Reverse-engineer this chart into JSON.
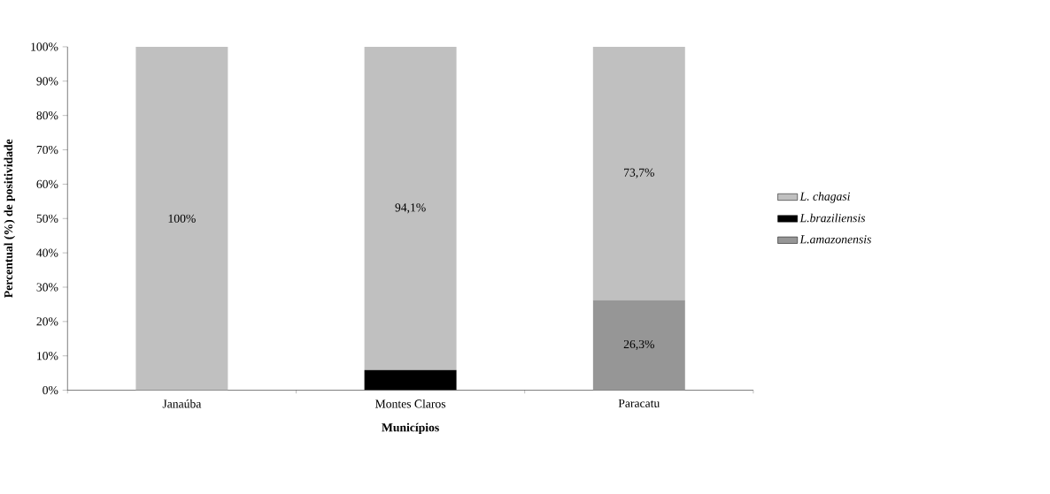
{
  "chart_data": {
    "type": "bar",
    "stacked": true,
    "xlabel": "Municípios",
    "ylabel": "Percentual (%) de positividade",
    "categories": [
      "Janaúba",
      "Montes Claros",
      "Paracatu"
    ],
    "series": [
      {
        "name": "L.amazonensis",
        "color": "#969696",
        "values": [
          0,
          0,
          26.3
        ],
        "value_labels": [
          null,
          null,
          "26,3%"
        ]
      },
      {
        "name": "L.braziliensis",
        "color": "#000000",
        "values": [
          0,
          5.9,
          0
        ],
        "value_labels": [
          null,
          null,
          null
        ]
      },
      {
        "name": "L. chagasi",
        "color": "#c0c0c0",
        "values": [
          100,
          94.1,
          73.7
        ],
        "value_labels": [
          "100%",
          "94,1%",
          "73,7%"
        ]
      }
    ],
    "ylim": [
      0,
      100
    ],
    "yticks": [
      {
        "value": 0,
        "label": "0%"
      },
      {
        "value": 10,
        "label": "10%"
      },
      {
        "value": 20,
        "label": "20%"
      },
      {
        "value": 30,
        "label": "30%"
      },
      {
        "value": 40,
        "label": "40%"
      },
      {
        "value": 50,
        "label": "50%"
      },
      {
        "value": 60,
        "label": "60%"
      },
      {
        "value": 70,
        "label": "70%"
      },
      {
        "value": 80,
        "label": "80%"
      },
      {
        "value": 90,
        "label": "90%"
      },
      {
        "value": 100,
        "label": "100%"
      }
    ],
    "legend": "right"
  }
}
